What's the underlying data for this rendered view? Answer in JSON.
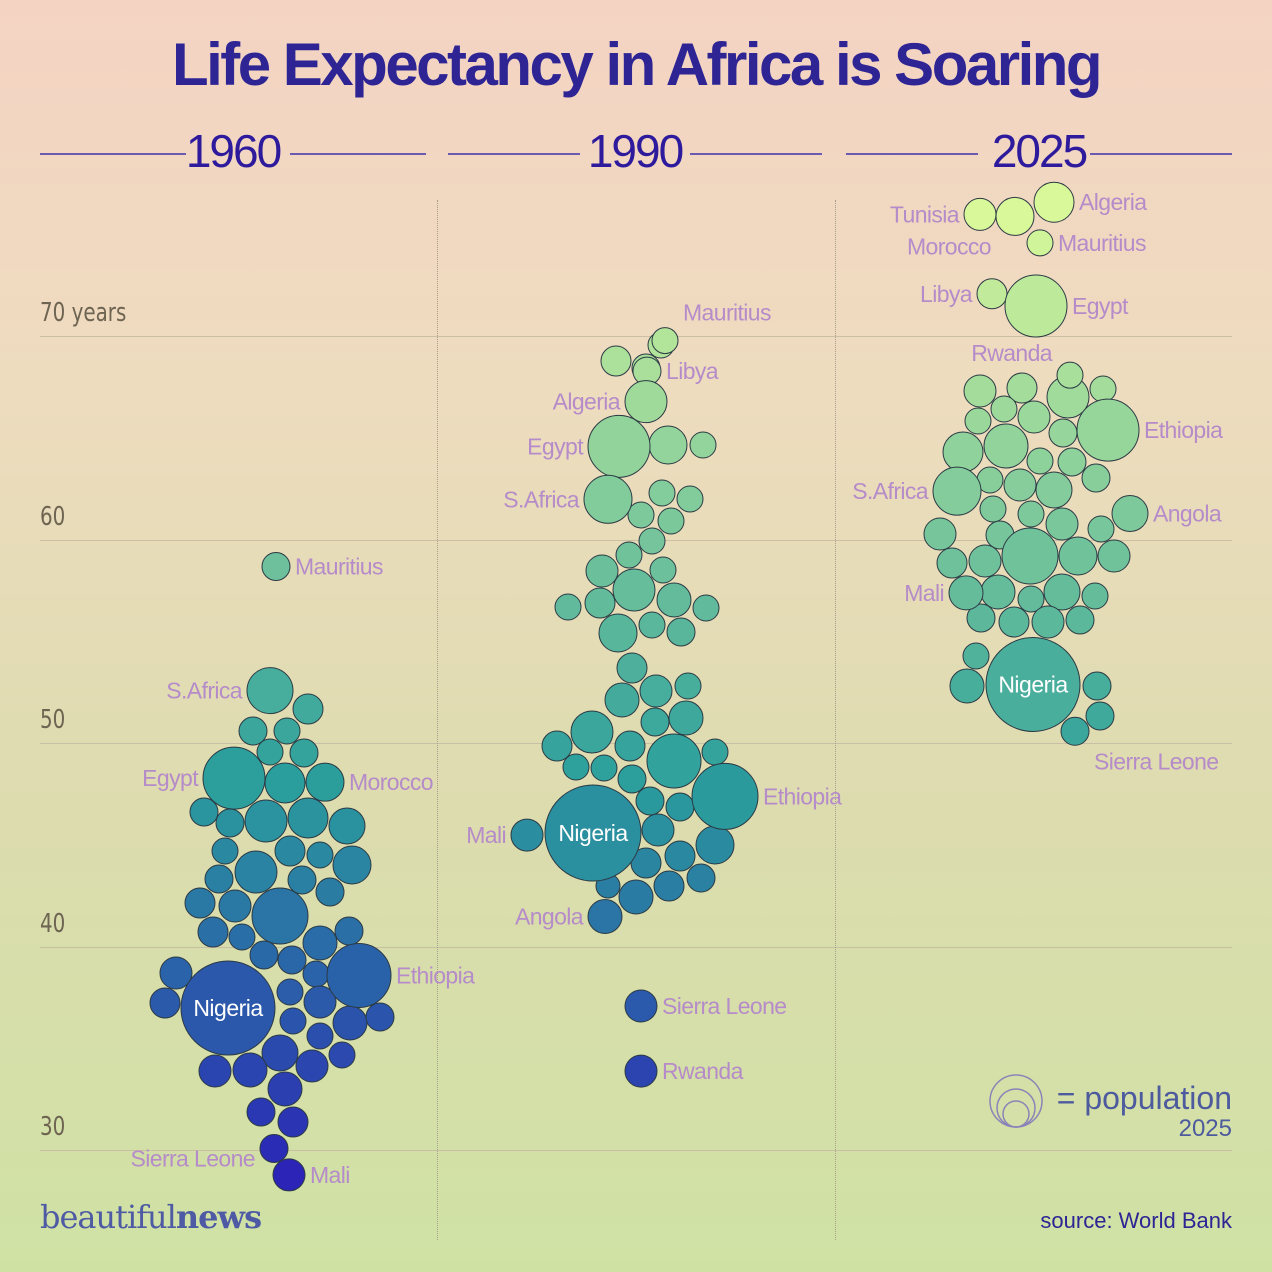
{
  "title": "Life Expectancy in Africa is Soaring",
  "legend": {
    "label": "= population",
    "year": "2025"
  },
  "brand": {
    "part1": "beautiful",
    "part2": "news"
  },
  "source": "source: World Bank",
  "colors": {
    "title": "#2e2494",
    "label": "#b58bc9",
    "low": "#2b1fb8",
    "mid": "#2a9e9c",
    "high": "#d9f89a"
  },
  "chart_data": {
    "type": "bubble-beeswarm",
    "y_unit": "years",
    "y_ticks": [
      "70 years",
      "60",
      "50",
      "40",
      "30"
    ],
    "ylim": [
      28,
      78
    ],
    "panels": [
      {
        "year": "1960",
        "labeled": [
          {
            "country": "Mauritius",
            "life_expectancy": 58.7
          },
          {
            "country": "S.Africa",
            "life_expectancy": 52.6
          },
          {
            "country": "Egypt",
            "life_expectancy": 48.3
          },
          {
            "country": "Morocco",
            "life_expectancy": 48.1
          },
          {
            "country": "Ethiopia",
            "life_expectancy": 38.6
          },
          {
            "country": "Nigeria",
            "life_expectancy": 37.0
          },
          {
            "country": "Sierra Leone",
            "life_expectancy": 30.1
          },
          {
            "country": "Mali",
            "life_expectancy": 28.8
          }
        ]
      },
      {
        "year": "1990",
        "labeled": [
          {
            "country": "Mauritius",
            "life_expectancy": 69.8
          },
          {
            "country": "Libya",
            "life_expectancy": 68.3
          },
          {
            "country": "Algeria",
            "life_expectancy": 66.8
          },
          {
            "country": "Egypt",
            "life_expectancy": 64.6
          },
          {
            "country": "S.Africa",
            "life_expectancy": 62.0
          },
          {
            "country": "Ethiopia",
            "life_expectancy": 47.4
          },
          {
            "country": "Nigeria",
            "life_expectancy": 45.6
          },
          {
            "country": "Mali",
            "life_expectancy": 45.5
          },
          {
            "country": "Angola",
            "life_expectancy": 41.5
          },
          {
            "country": "Sierra Leone",
            "life_expectancy": 37.1
          },
          {
            "country": "Rwanda",
            "life_expectancy": 33.9
          }
        ]
      },
      {
        "year": "2025",
        "labeled": [
          {
            "country": "Algeria",
            "life_expectancy": 76.6
          },
          {
            "country": "Tunisia",
            "life_expectancy": 76.0
          },
          {
            "country": "Morocco",
            "life_expectancy": 75.9
          },
          {
            "country": "Mauritius",
            "life_expectancy": 74.6
          },
          {
            "country": "Libya",
            "life_expectancy": 72.1
          },
          {
            "country": "Egypt",
            "life_expectancy": 71.5
          },
          {
            "country": "Rwanda",
            "life_expectancy": 68.1
          },
          {
            "country": "Ethiopia",
            "life_expectancy": 65.4
          },
          {
            "country": "S.Africa",
            "life_expectancy": 62.4
          },
          {
            "country": "Angola",
            "life_expectancy": 61.3
          },
          {
            "country": "Mali",
            "life_expectancy": 57.4
          },
          {
            "country": "Nigeria",
            "life_expectancy": 52.9
          },
          {
            "country": "Sierra Leone",
            "life_expectancy": 50.6
          }
        ]
      }
    ]
  }
}
